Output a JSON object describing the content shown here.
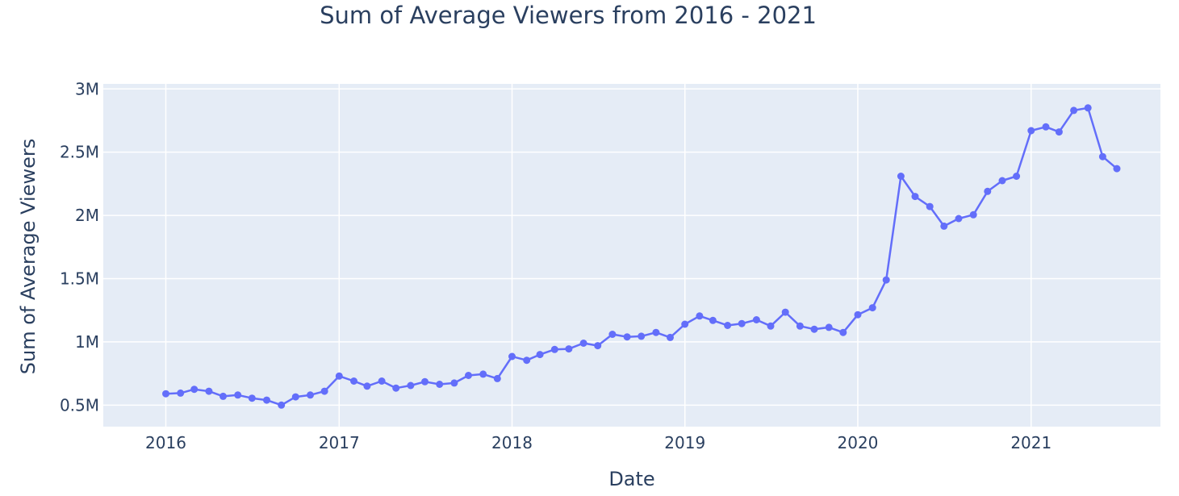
{
  "chart_data": {
    "type": "line",
    "title": "Sum of Average Viewers from 2016 - 2021",
    "xlabel": "Date",
    "ylabel": "Sum of Average Viewers",
    "xlim": [
      "2015-08-22",
      "2021-10-01"
    ],
    "ylim": [
      330000,
      3040000
    ],
    "x_ticks": [
      {
        "value": "2016-01-01",
        "label": "2016"
      },
      {
        "value": "2017-01-01",
        "label": "2017"
      },
      {
        "value": "2018-01-01",
        "label": "2018"
      },
      {
        "value": "2019-01-01",
        "label": "2019"
      },
      {
        "value": "2020-01-01",
        "label": "2020"
      },
      {
        "value": "2021-01-01",
        "label": "2021"
      }
    ],
    "y_ticks": [
      {
        "value": 500000,
        "label": "0.5M"
      },
      {
        "value": 1000000,
        "label": "1M"
      },
      {
        "value": 1500000,
        "label": "1.5M"
      },
      {
        "value": 2000000,
        "label": "2M"
      },
      {
        "value": 2500000,
        "label": "2.5M"
      },
      {
        "value": 3000000,
        "label": "3M"
      }
    ],
    "grid": true,
    "colors": {
      "line": "#636efa",
      "plot_bg": "#e5ecf6",
      "grid": "#ffffff",
      "text": "#2a3f5f"
    },
    "series": [
      {
        "x": [
          "2016-01",
          "2016-02",
          "2016-03",
          "2016-04",
          "2016-05",
          "2016-06",
          "2016-07",
          "2016-08",
          "2016-09",
          "2016-10",
          "2016-11",
          "2016-12",
          "2017-01",
          "2017-02",
          "2017-03",
          "2017-04",
          "2017-05",
          "2017-06",
          "2017-07",
          "2017-08",
          "2017-09",
          "2017-10",
          "2017-11",
          "2017-12",
          "2018-01",
          "2018-02",
          "2018-03",
          "2018-04",
          "2018-05",
          "2018-06",
          "2018-07",
          "2018-08",
          "2018-09",
          "2018-10",
          "2018-11",
          "2018-12",
          "2019-01",
          "2019-02",
          "2019-03",
          "2019-04",
          "2019-05",
          "2019-06",
          "2019-07",
          "2019-08",
          "2019-09",
          "2019-10",
          "2019-11",
          "2019-12",
          "2020-01",
          "2020-02",
          "2020-03",
          "2020-04",
          "2020-05",
          "2020-06",
          "2020-07",
          "2020-08",
          "2020-09",
          "2020-10",
          "2020-11",
          "2020-12",
          "2021-01",
          "2021-02",
          "2021-03",
          "2021-04",
          "2021-05",
          "2021-06",
          "2021-07"
        ],
        "values": [
          590000,
          595000,
          625000,
          610000,
          570000,
          580000,
          555000,
          540000,
          500000,
          565000,
          580000,
          610000,
          730000,
          690000,
          650000,
          690000,
          635000,
          655000,
          685000,
          665000,
          675000,
          735000,
          745000,
          710000,
          885000,
          855000,
          900000,
          940000,
          945000,
          990000,
          970000,
          1060000,
          1040000,
          1045000,
          1075000,
          1035000,
          1140000,
          1205000,
          1170000,
          1130000,
          1145000,
          1175000,
          1125000,
          1235000,
          1125000,
          1100000,
          1115000,
          1075000,
          1215000,
          1270000,
          1490000,
          2310000,
          2150000,
          2070000,
          1915000,
          1975000,
          2005000,
          2190000,
          2275000,
          2310000,
          2670000,
          2700000,
          2660000,
          2830000,
          2850000,
          2465000,
          2370000
        ]
      }
    ]
  }
}
